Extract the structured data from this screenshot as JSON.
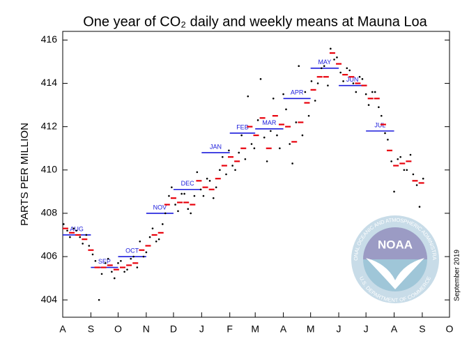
{
  "chart_data": {
    "type": "scatter",
    "title": "One year of CO₂ daily and weekly means at Mauna Loa",
    "y_label": "PARTS PER MILLION",
    "xlim": [
      0,
      426
    ],
    "xticks": [
      {
        "value": 0,
        "label": "A"
      },
      {
        "value": 31,
        "label": "S"
      },
      {
        "value": 61,
        "label": "O"
      },
      {
        "value": 92,
        "label": "N"
      },
      {
        "value": 122,
        "label": "D"
      },
      {
        "value": 153,
        "label": "J"
      },
      {
        "value": 184,
        "label": "F"
      },
      {
        "value": 212,
        "label": "M"
      },
      {
        "value": 243,
        "label": "A"
      },
      {
        "value": 273,
        "label": "M"
      },
      {
        "value": 304,
        "label": "J"
      },
      {
        "value": 334,
        "label": "J"
      },
      {
        "value": 365,
        "label": "A"
      },
      {
        "value": 396,
        "label": "S"
      },
      {
        "value": 426,
        "label": "O"
      }
    ],
    "ylim": [
      403.2,
      416.4
    ],
    "yticks": [
      404,
      406,
      408,
      410,
      412,
      414,
      416
    ],
    "daily": {
      "color": "#000000",
      "x": [
        1,
        5,
        8,
        12,
        15,
        19,
        22,
        26,
        29,
        33,
        36,
        40,
        43,
        47,
        50,
        54,
        57,
        61,
        64,
        68,
        71,
        75,
        78,
        82,
        85,
        89,
        92,
        96,
        99,
        103,
        106,
        110,
        113,
        117,
        120,
        124,
        127,
        131,
        134,
        138,
        141,
        145,
        148,
        152,
        155,
        159,
        162,
        166,
        169,
        173,
        176,
        180,
        183,
        187,
        190,
        194,
        197,
        201,
        204,
        208,
        211,
        215,
        218,
        222,
        225,
        229,
        232,
        236,
        239,
        243,
        246,
        250,
        253,
        257,
        260,
        264,
        267,
        271,
        274,
        278,
        281,
        285,
        288,
        292,
        295,
        299,
        302,
        306,
        309,
        313,
        316,
        320,
        323,
        327,
        330,
        334,
        337,
        341,
        344,
        348,
        351,
        355,
        358,
        362,
        365,
        369,
        372,
        376,
        379,
        383,
        386,
        390,
        393,
        397
      ],
      "values": [
        407.5,
        407.2,
        406.9,
        407.3,
        407.2,
        406.9,
        406.6,
        407.0,
        406.5,
        406.1,
        405.8,
        404.0,
        405.2,
        405.7,
        405.9,
        405.3,
        405.0,
        405.7,
        405.8,
        405.3,
        405.4,
        405.9,
        406.0,
        405.5,
        406.7,
        406.0,
        406.2,
        406.9,
        407.3,
        406.7,
        406.8,
        407.5,
        408.0,
        408.8,
        409.2,
        408.4,
        408.1,
        408.9,
        408.9,
        408.2,
        408.0,
        408.8,
        409.9,
        409.1,
        408.8,
        409.6,
        409.5,
        408.7,
        409.2,
        410.0,
        410.6,
        409.8,
        410.9,
        410.2,
        410.0,
        410.8,
        411.6,
        410.5,
        413.4,
        411.2,
        411.0,
        412.3,
        414.2,
        411.5,
        410.4,
        411.8,
        413.3,
        411.6,
        411.0,
        413.5,
        412.8,
        411.2,
        410.3,
        412.2,
        414.8,
        411.6,
        413.6,
        412.5,
        414.1,
        413.2,
        414.0,
        414.7,
        414.8,
        413.9,
        415.6,
        415.1,
        415.2,
        414.5,
        414.1,
        414.7,
        414.6,
        414.0,
        413.6,
        414.3,
        414.2,
        413.5,
        413.0,
        413.6,
        413.6,
        412.9,
        412.5,
        411.7,
        411.4,
        410.4,
        409.0,
        410.5,
        410.6,
        410.0,
        410.0,
        410.7,
        409.8,
        409.3,
        408.3,
        409.6
      ]
    },
    "weekly": {
      "color": "#e8000b",
      "x": [
        3,
        10,
        17,
        24,
        31,
        38,
        45,
        52,
        59,
        66,
        73,
        80,
        87,
        94,
        101,
        108,
        115,
        122,
        129,
        136,
        143,
        150,
        157,
        164,
        171,
        178,
        185,
        192,
        199,
        206,
        213,
        220,
        227,
        234,
        241,
        248,
        255,
        262,
        269,
        276,
        283,
        290,
        297,
        304,
        311,
        318,
        325,
        332,
        339,
        346,
        353,
        360,
        367,
        374,
        381,
        388,
        395
      ],
      "values": [
        407.3,
        407.1,
        407.0,
        406.8,
        406.3,
        405.5,
        405.5,
        405.6,
        405.4,
        405.5,
        405.6,
        405.7,
        406.3,
        406.5,
        407.0,
        407.1,
        408.4,
        408.7,
        408.5,
        408.5,
        408.4,
        409.5,
        409.2,
        409.1,
        409.6,
        410.2,
        410.6,
        410.4,
        411.0,
        412.0,
        411.6,
        412.4,
        411.0,
        412.5,
        412.1,
        412.0,
        411.3,
        412.2,
        413.1,
        413.7,
        414.3,
        414.3,
        415.4,
        414.9,
        414.4,
        414.3,
        414.0,
        413.9,
        413.3,
        413.3,
        412.1,
        410.9,
        410.2,
        410.3,
        410.4,
        409.5,
        409.4
      ]
    },
    "monthly": {
      "color": "#1a1adb",
      "labels": [
        "AUG",
        "SEP",
        "OCT",
        "NOV",
        "DEC",
        "JAN",
        "FEB",
        "MAR",
        "APR",
        "MAY",
        "JUN",
        "JUL"
      ],
      "values": [
        407.0,
        405.5,
        406.0,
        408.0,
        409.1,
        410.8,
        411.7,
        411.9,
        413.3,
        414.7,
        413.9,
        411.8
      ]
    },
    "annotations": {
      "date": "September 2019",
      "logo": "NOAA",
      "logo_top": "NATIONAL OCEANIC AND ATMOSPHERIC ADMINISTRATION",
      "logo_bottom": "U.S. DEPARTMENT OF COMMERCE"
    }
  }
}
